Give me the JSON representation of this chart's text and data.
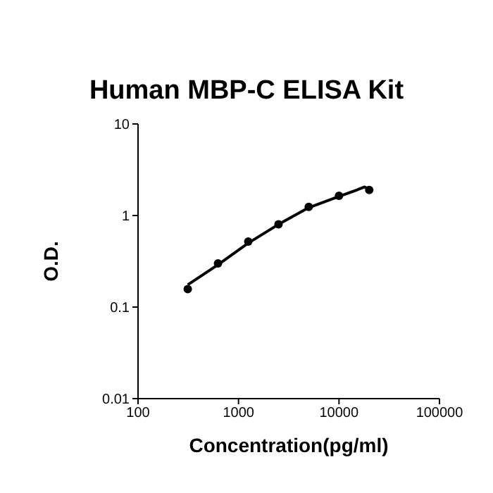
{
  "chart_data": {
    "type": "scatter",
    "title": "Human MBP-C ELISA Kit",
    "xlabel": "Concentration(pg/ml)",
    "ylabel": "O.D.",
    "log": "xy",
    "grid": false,
    "marker": "circle",
    "xlim": [
      100,
      100000
    ],
    "xticks": [
      100,
      1000,
      10000,
      100000
    ],
    "ylim": [
      0.01,
      10
    ],
    "yticks": [
      0.01,
      0.1,
      1,
      10
    ],
    "series": [
      {
        "color": "#000000",
        "x": [
          312.5,
          625,
          1250,
          2500,
          5000,
          10000,
          20000
        ],
        "values": [
          0.157,
          0.3,
          0.52,
          0.8,
          1.24,
          1.64,
          1.9
        ]
      },
      {
        "type": "line",
        "color": "#000000",
        "marker": "none",
        "line_style": "solid",
        "x": [
          312.5,
          625,
          1250,
          2500,
          5000,
          10000,
          15000,
          18000,
          20000
        ],
        "values": [
          0.175,
          0.29,
          0.5,
          0.8,
          1.22,
          1.62,
          1.9,
          2.05,
          1.95
        ]
      }
    ]
  }
}
